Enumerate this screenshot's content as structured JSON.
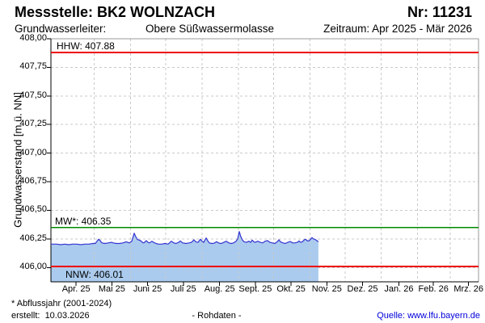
{
  "header": {
    "title": "Messstelle: BK2 WOLNZACH",
    "station_number": "Nr: 11231",
    "aquifer_label": "Grundwasserleiter:",
    "aquifer_value": "Obere Süßwassermolasse",
    "period": "Zeitraum: Apr 2025 - Mär 2026"
  },
  "chart_data": {
    "type": "area",
    "title": "",
    "xlabel": "",
    "ylabel": "Grundwasserstand [m ü. NN]",
    "ylim": [
      405.875,
      408.0
    ],
    "grid": true,
    "legend": false,
    "y_tick_values": [
      408.0,
      407.75,
      407.5,
      407.25,
      407.0,
      406.75,
      406.5,
      406.25,
      406.0
    ],
    "y_tick_labels": [
      "408,00",
      "407,75",
      "407,50",
      "407,25",
      "407,00",
      "406,75",
      "406,50",
      "406,25",
      "406,00"
    ],
    "x_tick_labels": [
      "Apr. 25",
      "Mai 25",
      "Juni 25",
      "Juli 25",
      "Aug. 25",
      "Sept. 25",
      "Okt. 25",
      "Nov. 25",
      "Dez. 25",
      "Jan. 26",
      "Feb. 26",
      "Mrz. 26"
    ],
    "x_axis": {
      "unit": "days (0 = 01.04.2025)",
      "start_day": -7,
      "end_day": 358,
      "month_end_days": [
        30,
        61,
        91,
        122,
        153,
        183,
        214,
        244,
        275,
        306,
        334
      ],
      "month_mid_days": [
        14.5,
        45,
        75.5,
        106,
        137,
        167.5,
        198,
        228.5,
        259,
        290,
        319.5,
        349.5
      ]
    },
    "reference_lines": [
      {
        "id": "hhw",
        "label": "HHW: 407.88",
        "value": 407.88,
        "color": "#ee0000"
      },
      {
        "id": "mw",
        "label": "MW*: 406.35",
        "value": 406.35,
        "color": "#008a00"
      },
      {
        "id": "nnw",
        "label": "NNW: 406.01",
        "value": 406.01,
        "color": "#ee0000"
      }
    ],
    "series": [
      {
        "name": "Rohdaten",
        "line_color": "#3434d0",
        "fill_color": "#aacbee",
        "points": [
          [
            -7,
            406.205
          ],
          [
            -2.2,
            406.205
          ],
          [
            1.3,
            406.2
          ],
          [
            4.7,
            406.205
          ],
          [
            8.2,
            406.2
          ],
          [
            11.6,
            406.205
          ],
          [
            15.1,
            406.205
          ],
          [
            18.5,
            406.2
          ],
          [
            22,
            406.205
          ],
          [
            25.4,
            406.205
          ],
          [
            28.9,
            406.21
          ],
          [
            30.9,
            406.21
          ],
          [
            32.3,
            406.23
          ],
          [
            33.7,
            406.248
          ],
          [
            35.1,
            406.235
          ],
          [
            36.5,
            406.215
          ],
          [
            39.2,
            406.21
          ],
          [
            42,
            406.215
          ],
          [
            44.7,
            406.22
          ],
          [
            46.1,
            406.215
          ],
          [
            48.9,
            406.21
          ],
          [
            51.6,
            406.21
          ],
          [
            54.4,
            406.215
          ],
          [
            57.2,
            406.225
          ],
          [
            58.5,
            406.22
          ],
          [
            59.9,
            406.215
          ],
          [
            62,
            406.23
          ],
          [
            64.1,
            406.3
          ],
          [
            65.4,
            406.27
          ],
          [
            66.8,
            406.245
          ],
          [
            68.2,
            406.24
          ],
          [
            69.6,
            406.235
          ],
          [
            71,
            406.22
          ],
          [
            72.3,
            406.215
          ],
          [
            74.4,
            406.235
          ],
          [
            75.8,
            406.22
          ],
          [
            77.2,
            406.215
          ],
          [
            79.2,
            406.23
          ],
          [
            80.6,
            406.22
          ],
          [
            82.7,
            406.21
          ],
          [
            84.8,
            406.205
          ],
          [
            87.5,
            406.205
          ],
          [
            90.3,
            406.21
          ],
          [
            93,
            406.205
          ],
          [
            95.8,
            406.23
          ],
          [
            97.9,
            406.215
          ],
          [
            99.9,
            406.21
          ],
          [
            102,
            406.22
          ],
          [
            103.4,
            406.232
          ],
          [
            105.5,
            406.215
          ],
          [
            108.2,
            406.21
          ],
          [
            111,
            406.215
          ],
          [
            113,
            406.22
          ],
          [
            115.1,
            406.243
          ],
          [
            116.5,
            406.225
          ],
          [
            118.6,
            406.22
          ],
          [
            120.6,
            406.247
          ],
          [
            122,
            406.23
          ],
          [
            123.4,
            406.22
          ],
          [
            125.5,
            406.258
          ],
          [
            126.8,
            406.235
          ],
          [
            128.2,
            406.215
          ],
          [
            130.3,
            406.21
          ],
          [
            132.4,
            406.213
          ],
          [
            134.4,
            406.226
          ],
          [
            136.5,
            406.213
          ],
          [
            138.6,
            406.21
          ],
          [
            140.6,
            406.22
          ],
          [
            142.7,
            406.23
          ],
          [
            144.8,
            406.215
          ],
          [
            146.9,
            406.21
          ],
          [
            148.9,
            406.215
          ],
          [
            151,
            406.23
          ],
          [
            152.4,
            406.25
          ],
          [
            153.8,
            406.315
          ],
          [
            155.1,
            406.27
          ],
          [
            156.5,
            406.24
          ],
          [
            157.9,
            406.225
          ],
          [
            160,
            406.22
          ],
          [
            162,
            406.23
          ],
          [
            163.4,
            406.22
          ],
          [
            164.8,
            406.24
          ],
          [
            166.2,
            406.225
          ],
          [
            167.5,
            406.22
          ],
          [
            169.6,
            406.23
          ],
          [
            171.7,
            406.22
          ],
          [
            173.8,
            406.215
          ],
          [
            175.8,
            406.23
          ],
          [
            177.9,
            406.235
          ],
          [
            180,
            406.22
          ],
          [
            182,
            406.215
          ],
          [
            184.1,
            406.21
          ],
          [
            186.2,
            406.225
          ],
          [
            187.6,
            406.243
          ],
          [
            188.9,
            406.225
          ],
          [
            191,
            406.215
          ],
          [
            193.1,
            406.21
          ],
          [
            195.2,
            406.22
          ],
          [
            197.2,
            406.228
          ],
          [
            199.3,
            406.215
          ],
          [
            201.4,
            406.215
          ],
          [
            203.4,
            406.22
          ],
          [
            204.8,
            406.232
          ],
          [
            206.2,
            406.22
          ],
          [
            207.6,
            406.225
          ],
          [
            209,
            406.24
          ],
          [
            210.3,
            406.248
          ],
          [
            211.7,
            406.235
          ],
          [
            213.1,
            406.232
          ],
          [
            214.5,
            406.245
          ],
          [
            215.8,
            406.262
          ],
          [
            217.2,
            406.25
          ],
          [
            218.6,
            406.245
          ],
          [
            220,
            406.235
          ],
          [
            221.3,
            406.225
          ]
        ]
      }
    ]
  },
  "footer": {
    "footnote": "* Abflussjahr (2001-2024)",
    "created": "erstellt:  10.03.2026",
    "center_label": "- Rohdaten -",
    "source": "Quelle: www.lfu.bayern.de"
  }
}
